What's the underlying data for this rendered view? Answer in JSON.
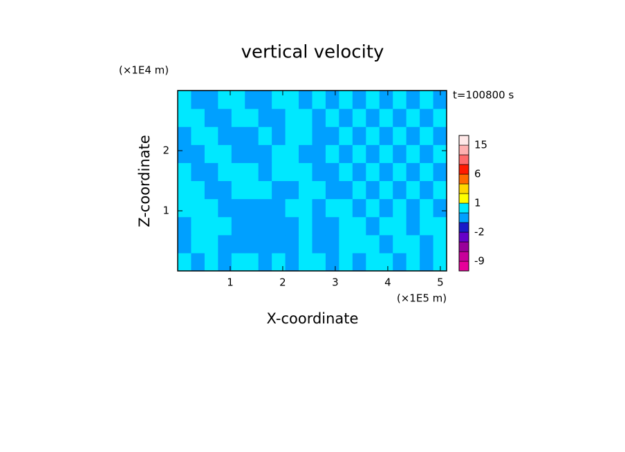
{
  "chart_data": {
    "type": "contour",
    "title": "vertical velocity",
    "xlabel": "X-coordinate",
    "ylabel": "Z-coordinate",
    "xunit": "(×1E5 m)",
    "yunit": "(×1E4 m)",
    "time_label": "t=100800 s",
    "xlim": [
      0,
      5.12
    ],
    "ylim": [
      0,
      3
    ],
    "xticks": [
      1,
      2,
      3,
      4,
      5
    ],
    "yticks": [
      1,
      2
    ],
    "levels": [
      -15,
      -9,
      -6,
      -4,
      -2,
      -1,
      0,
      1,
      2,
      4,
      6,
      9,
      12,
      15,
      25
    ],
    "colors": [
      "#e6009a",
      "#c8009a",
      "#99009a",
      "#6600c8",
      "#1a1ac8",
      "#00a0ff",
      "#00e8ff",
      "#ffff00",
      "#ffd700",
      "#ff6a00",
      "#ff1a00",
      "#ff6a6a",
      "#ffb0b0",
      "#ffe8e8"
    ],
    "colorbar_ticks": [
      -9,
      -2,
      1,
      6,
      15
    ],
    "z": [
      [
        0.5,
        -0.5,
        0.5,
        -0.5,
        0.5,
        0.5,
        -0.5,
        0.5,
        -0.5,
        0.5,
        0.5,
        -0.5,
        0.5,
        -0.5,
        0.5,
        0.5,
        -0.5,
        0.5,
        -0.5,
        0.5
      ],
      [
        -0.5,
        0.5,
        0.5,
        -0.5,
        -0.5,
        -0.5,
        -0.5,
        -0.5,
        -0.5,
        0.5,
        -0.5,
        -0.5,
        0.5,
        0.5,
        0.5,
        -0.5,
        0.5,
        0.5,
        -0.5,
        0.5
      ],
      [
        -0.5,
        0.5,
        0.5,
        0.5,
        -0.5,
        -0.5,
        -0.5,
        -0.5,
        -0.5,
        0.5,
        -0.5,
        -0.5,
        0.5,
        0.5,
        -0.5,
        0.5,
        0.5,
        -0.5,
        0.5,
        0.5
      ],
      [
        0.5,
        0.5,
        0.5,
        -0.5,
        -0.5,
        -0.5,
        -0.5,
        -0.5,
        0.5,
        0.5,
        -0.5,
        0.5,
        0.5,
        -0.5,
        0.5,
        -0.5,
        0.5,
        -0.5,
        0.5,
        -0.5
      ],
      [
        0.5,
        0.5,
        -0.5,
        -0.5,
        0.5,
        0.5,
        0.5,
        -0.5,
        -0.5,
        0.5,
        0.5,
        -0.5,
        -0.5,
        0.5,
        -0.5,
        0.5,
        -0.5,
        0.5,
        -0.5,
        0.5
      ],
      [
        0.5,
        -0.5,
        -0.5,
        0.5,
        0.5,
        0.5,
        -0.5,
        0.5,
        0.5,
        0.5,
        -0.5,
        -0.5,
        0.5,
        -0.5,
        0.5,
        -0.5,
        0.5,
        -0.5,
        0.5,
        -0.5
      ],
      [
        -0.5,
        -0.5,
        0.5,
        0.5,
        -0.5,
        -0.5,
        -0.5,
        0.5,
        0.5,
        -0.5,
        -0.5,
        0.5,
        -0.5,
        0.5,
        -0.5,
        0.5,
        -0.5,
        0.5,
        -0.5,
        0.5
      ],
      [
        -0.5,
        0.5,
        0.5,
        -0.5,
        -0.5,
        -0.5,
        0.5,
        -0.5,
        0.5,
        0.5,
        -0.5,
        -0.5,
        0.5,
        -0.5,
        0.5,
        -0.5,
        0.5,
        -0.5,
        0.5,
        -0.5
      ],
      [
        0.5,
        0.5,
        -0.5,
        -0.5,
        0.5,
        0.5,
        -0.5,
        -0.5,
        0.5,
        0.5,
        -0.5,
        0.5,
        -0.5,
        0.5,
        -0.5,
        0.5,
        -0.5,
        0.5,
        -0.5,
        0.5
      ],
      [
        0.5,
        -0.5,
        -0.5,
        0.5,
        0.5,
        -0.5,
        -0.5,
        0.5,
        0.5,
        -0.5,
        0.5,
        -0.5,
        0.5,
        -0.5,
        0.5,
        -0.5,
        0.5,
        -0.5,
        0.5,
        -0.5
      ]
    ]
  }
}
